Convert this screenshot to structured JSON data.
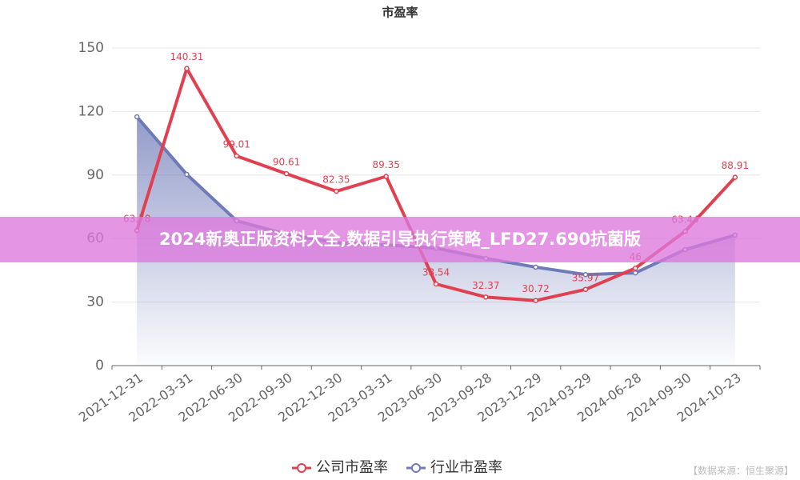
{
  "chart_data": {
    "type": "line",
    "title": "市盈率",
    "categories": [
      "2021-12-31",
      "2022-03-31",
      "2022-06-30",
      "2022-09-30",
      "2022-12-30",
      "2023-03-31",
      "2023-06-30",
      "2023-09-28",
      "2023-12-29",
      "2024-03-29",
      "2024-06-28",
      "2024-09-30",
      "2024-10-23"
    ],
    "series": [
      {
        "name": "公司市盈率",
        "color": "#e0404f",
        "show_labels": true,
        "area": false,
        "values": [
          63.78,
          140.31,
          99.01,
          90.61,
          82.35,
          89.35,
          38.54,
          32.37,
          30.72,
          35.97,
          46,
          63.44,
          88.91
        ]
      },
      {
        "name": "行业市盈率",
        "color": "#6f7bb8",
        "show_labels": false,
        "area": true,
        "values": [
          117.5,
          90.3,
          68.4,
          62,
          58,
          57,
          55.5,
          50.6,
          46.5,
          43,
          43.8,
          54.8,
          61.6
        ]
      }
    ],
    "ylim": [
      0,
      150
    ],
    "yticks": [
      0,
      30,
      60,
      90,
      120,
      150
    ],
    "grid": true
  },
  "overlay_banner": "2024新奥正版资料大全,数据引导执行策略_LFD27.690抗菌版",
  "source": "【数据来源：恒生聚源】"
}
